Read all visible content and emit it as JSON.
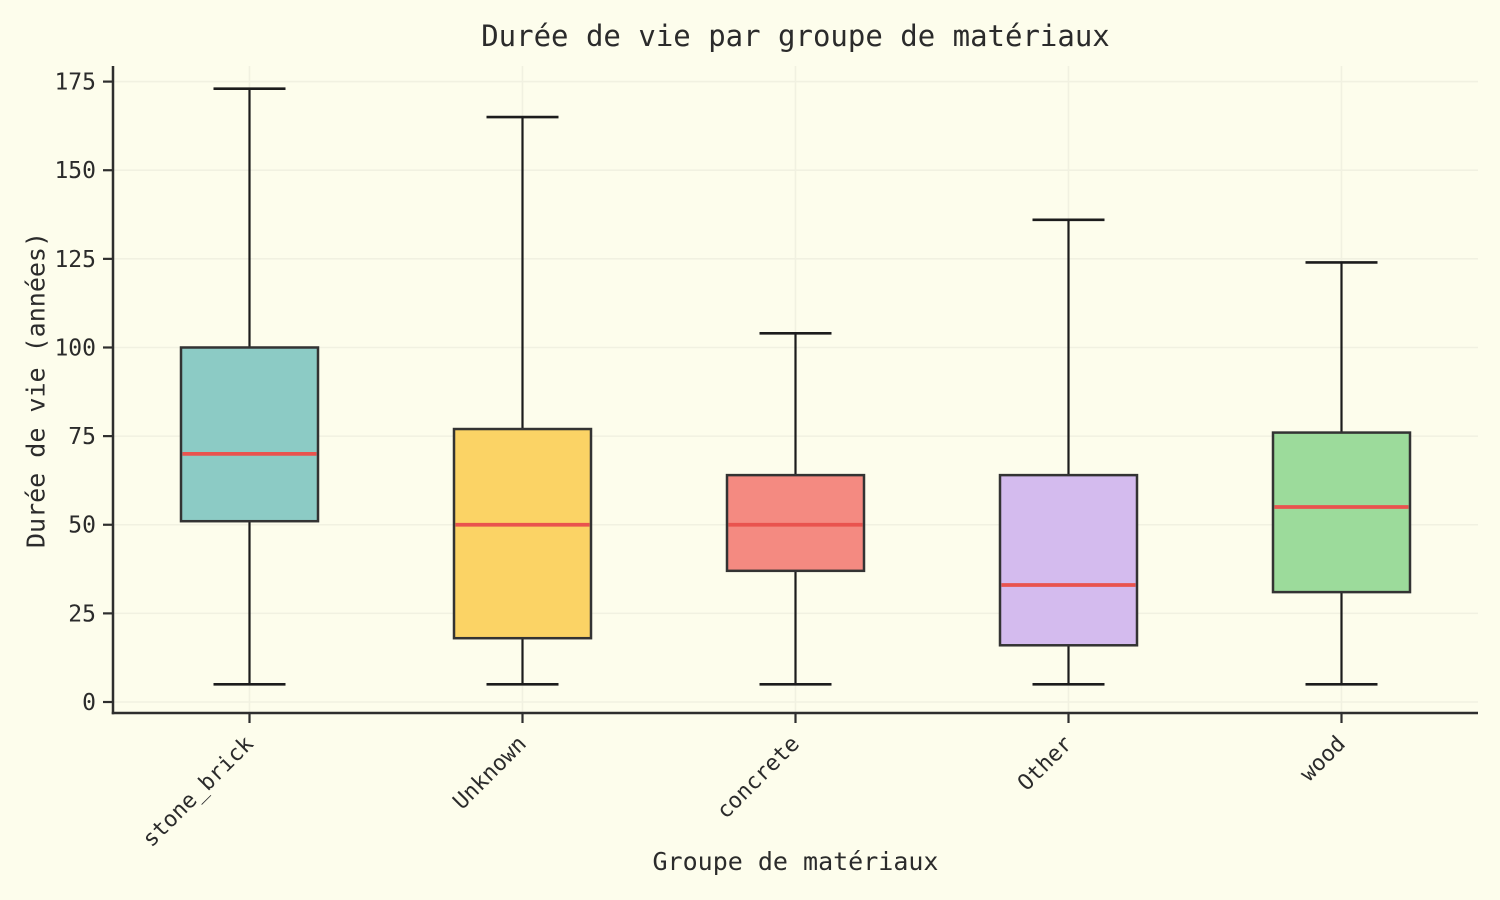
{
  "chart_data": {
    "type": "box",
    "title": "Durée de vie par groupe de matériaux",
    "xlabel": "Groupe de matériaux",
    "ylabel": "Durée de vie (années)",
    "categories": [
      "stone_brick",
      "Unknown",
      "concrete",
      "Other",
      "wood"
    ],
    "series": [
      {
        "name": "stone_brick",
        "whisker_low": 5,
        "q1": 51,
        "median": 70,
        "q3": 100,
        "whisker_high": 173,
        "color": "#8CCBC5"
      },
      {
        "name": "Unknown",
        "whisker_low": 5,
        "q1": 18,
        "median": 50,
        "q3": 77,
        "whisker_high": 165,
        "color": "#FBD365"
      },
      {
        "name": "concrete",
        "whisker_low": 5,
        "q1": 37,
        "median": 50,
        "q3": 64,
        "whisker_high": 104,
        "color": "#F48A81"
      },
      {
        "name": "Other",
        "whisker_low": 5,
        "q1": 16,
        "median": 33,
        "q3": 64,
        "whisker_high": 136,
        "color": "#D4BBEE"
      },
      {
        "name": "wood",
        "whisker_low": 5,
        "q1": 31,
        "median": 55,
        "q3": 76,
        "whisker_high": 124,
        "color": "#9CDB9B"
      }
    ],
    "yticks": [
      0,
      25,
      50,
      75,
      100,
      125,
      150,
      175
    ],
    "ylim": [
      -3.1,
      179.4
    ],
    "grid": true,
    "legend": "none",
    "colors": {
      "background": "#FDFDEC",
      "gridline": "#F1F1E1",
      "spine": "#2E2E2E",
      "whisker": "#1C1C1C",
      "box_border": "#333333",
      "median": "#E9534E",
      "text": "#2B2B2B"
    }
  }
}
